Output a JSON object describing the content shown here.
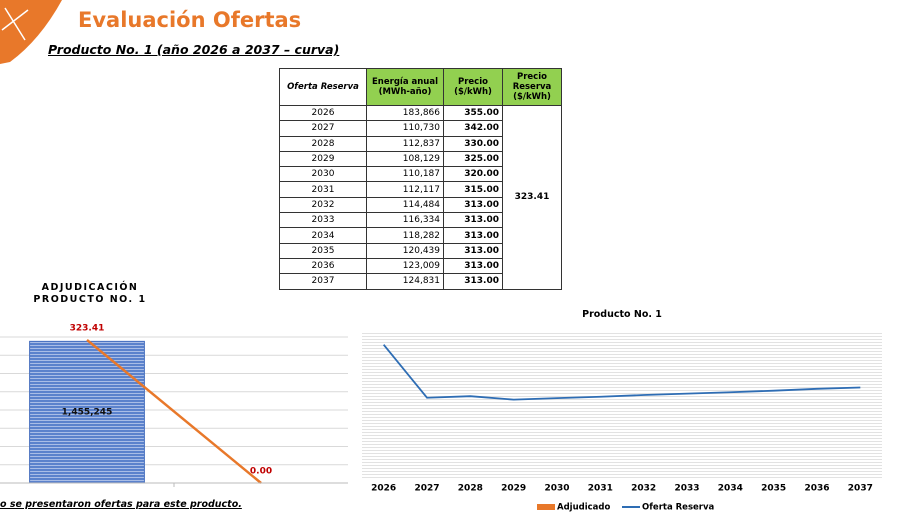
{
  "header": {
    "title": "Evaluación Ofertas",
    "subtitle": "Producto No. 1 (año 2026 a 2037 – curva)"
  },
  "table": {
    "columns": [
      "Oferta Reserva",
      "Energía anual\n(MWh-año)",
      "Precio\n($/kWh)",
      "Precio\nReserva\n($/kWh)"
    ],
    "rows": [
      [
        "2026",
        "183,866",
        "355.00"
      ],
      [
        "2027",
        "110,730",
        "342.00"
      ],
      [
        "2028",
        "112,837",
        "330.00"
      ],
      [
        "2029",
        "108,129",
        "325.00"
      ],
      [
        "2030",
        "110,187",
        "320.00"
      ],
      [
        "2031",
        "112,117",
        "315.00"
      ],
      [
        "2032",
        "114,484",
        "313.00"
      ],
      [
        "2033",
        "116,334",
        "313.00"
      ],
      [
        "2034",
        "118,282",
        "313.00"
      ],
      [
        "2035",
        "120,439",
        "313.00"
      ],
      [
        "2036",
        "123,009",
        "313.00"
      ],
      [
        "2037",
        "124,831",
        "313.00"
      ]
    ],
    "reserve_price": "323.41"
  },
  "chart_data": [
    {
      "type": "bar-line",
      "title": "ADJUDICACIÓN PRODUCTO NO. 1",
      "categories": [
        null,
        null
      ],
      "series": [
        {
          "type": "bar",
          "color": "#4a72c0",
          "values": [
            1455245,
            null
          ],
          "value_labels": [
            "1,455,245",
            null
          ]
        },
        {
          "type": "line",
          "axis": "y2",
          "color": "#e8782a",
          "values": [
            323.41,
            0
          ],
          "value_labels": [
            "323.41",
            "0.00"
          ]
        }
      ],
      "ylim": [
        0,
        1500000
      ],
      "y2lim": [
        0,
        330
      ]
    },
    {
      "type": "line",
      "title": "Producto No. 1",
      "categories": [
        "2026",
        "2027",
        "2028",
        "2029",
        "2030",
        "2031",
        "2032",
        "2033",
        "2034",
        "2035",
        "2036",
        "2037"
      ],
      "series": [
        {
          "name": "Adjudicado",
          "color": "#e8782a",
          "values": [
            null,
            null,
            null,
            null,
            null,
            null,
            null,
            null,
            null,
            null,
            null,
            null
          ]
        },
        {
          "name": "Oferta Reserva",
          "color": "#2e6db4",
          "values": [
            183866,
            110730,
            112837,
            108129,
            110187,
            112117,
            114484,
            116334,
            118282,
            120439,
            123009,
            124831
          ]
        }
      ],
      "ylim": [
        0,
        200000
      ]
    }
  ],
  "footnote": "o se presentaron ofertas para este producto."
}
